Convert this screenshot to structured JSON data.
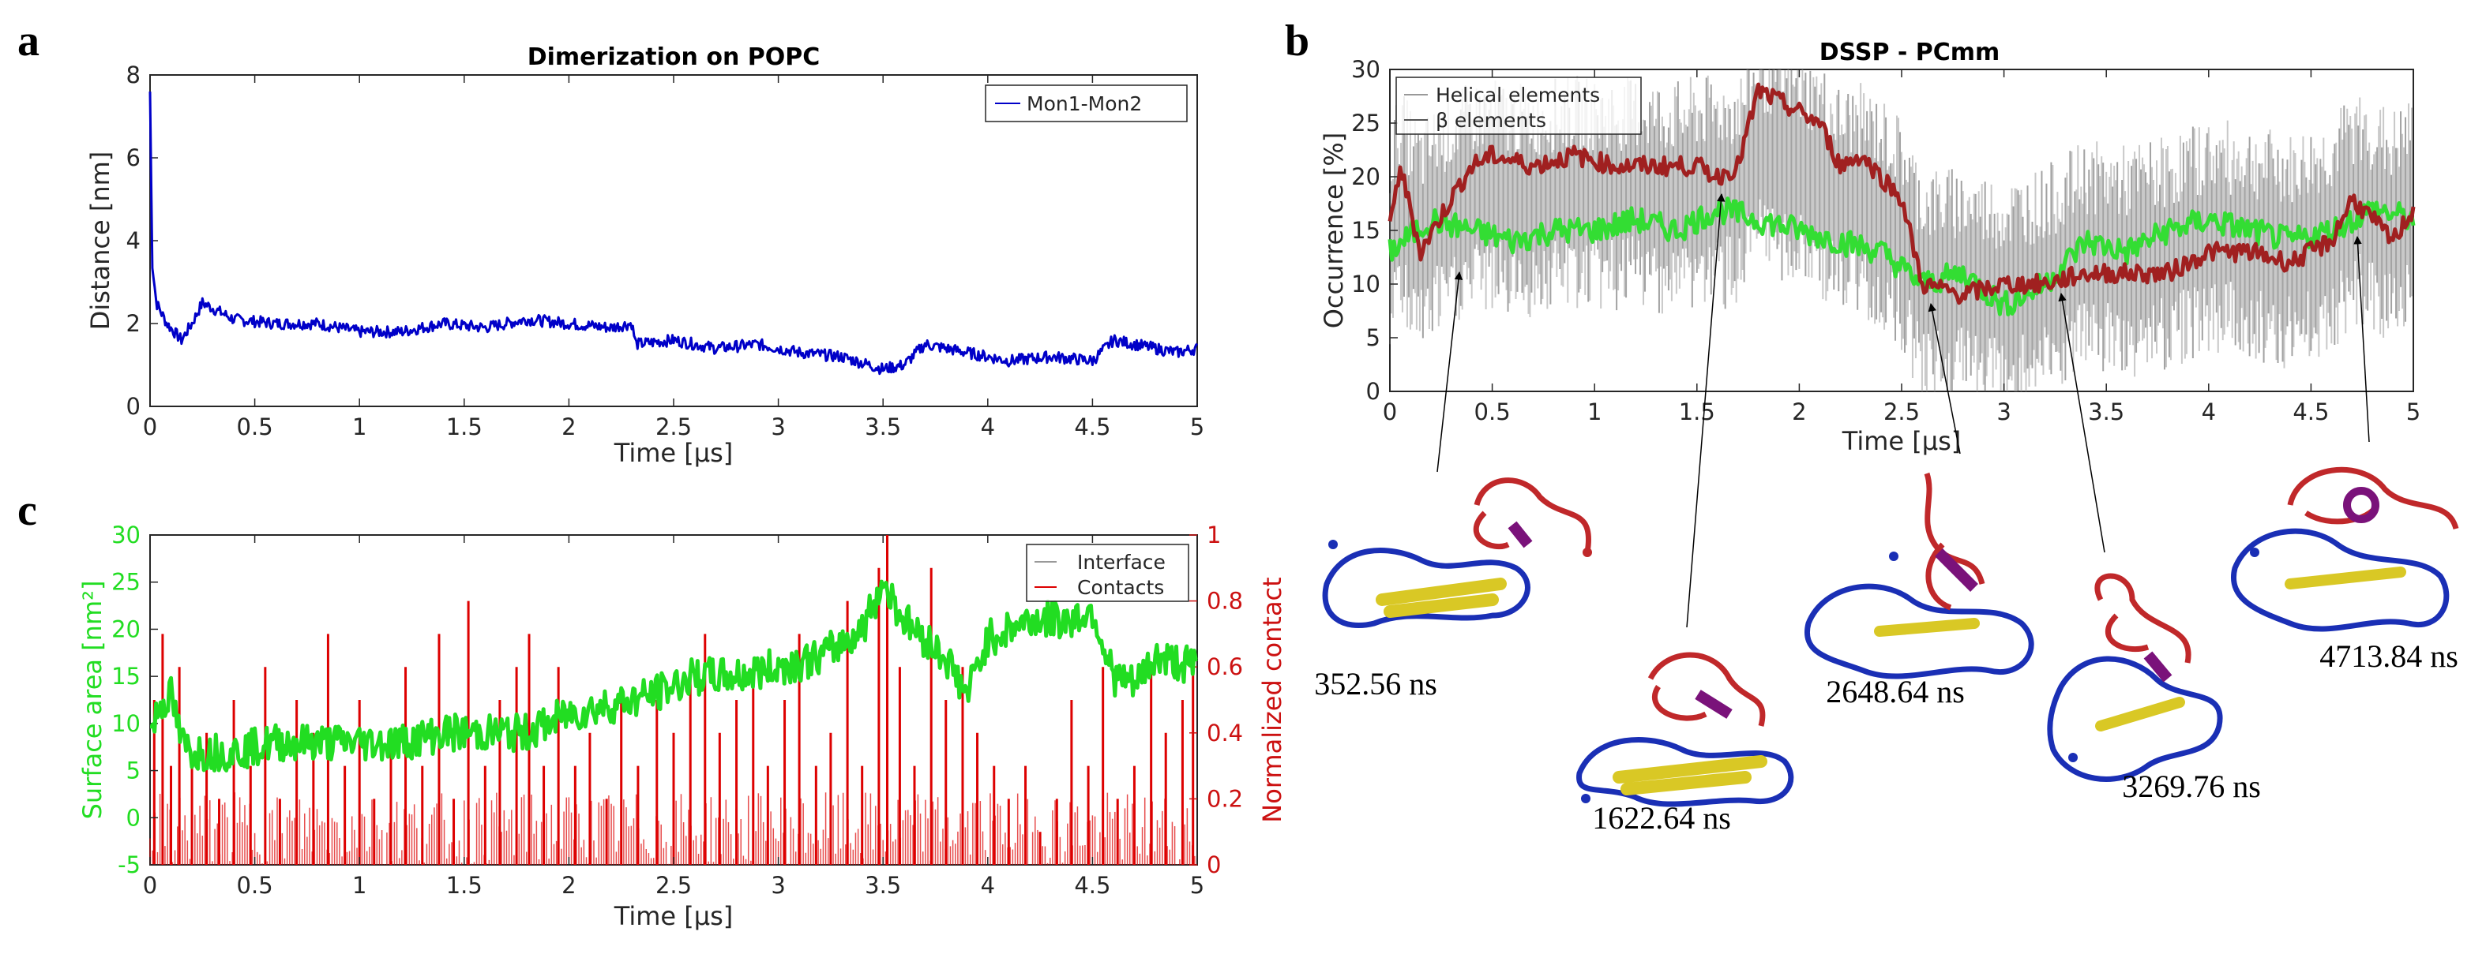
{
  "chart_data": [
    {
      "panel": "a",
      "type": "line",
      "title": "Dimerization on POPC",
      "xlabel": "Time [μs]",
      "ylabel": "Distance [nm]",
      "xlim": [
        0,
        5
      ],
      "ylim": [
        0,
        8
      ],
      "xticks": [
        "0",
        "0.5",
        "1",
        "1.5",
        "2",
        "2.5",
        "3",
        "3.5",
        "4",
        "4.5",
        "5"
      ],
      "yticks": [
        "0",
        "2",
        "4",
        "6",
        "8"
      ],
      "legend_position": "top-right",
      "series": [
        {
          "name": "Mon1-Mon2",
          "color": "#0000c8",
          "x": [
            0,
            0.01,
            0.03,
            0.08,
            0.15,
            0.2,
            0.25,
            0.4,
            0.6,
            0.8,
            1.0,
            1.2,
            1.4,
            1.6,
            1.8,
            2.0,
            2.2,
            2.3,
            2.32,
            2.5,
            2.7,
            2.9,
            3.1,
            3.3,
            3.5,
            3.6,
            3.7,
            3.9,
            4.1,
            4.3,
            4.5,
            4.6,
            4.7,
            4.9,
            5.0
          ],
          "values": [
            7.6,
            3.5,
            2.5,
            2.0,
            1.6,
            2.0,
            2.5,
            2.1,
            2.0,
            2.0,
            1.8,
            1.8,
            2.0,
            1.9,
            2.1,
            2.0,
            1.9,
            2.0,
            1.5,
            1.6,
            1.4,
            1.5,
            1.3,
            1.2,
            0.9,
            1.0,
            1.5,
            1.3,
            1.1,
            1.2,
            1.1,
            1.6,
            1.5,
            1.3,
            1.4
          ]
        }
      ]
    },
    {
      "panel": "b",
      "type": "line",
      "title": "DSSP - PCmm",
      "xlabel": "Time [μs]",
      "ylabel": "Occurrence [%]",
      "xlim": [
        0,
        5
      ],
      "ylim": [
        0,
        30
      ],
      "xticks": [
        "0",
        "0.5",
        "1",
        "1.5",
        "2",
        "2.5",
        "3",
        "3.5",
        "4",
        "4.5",
        "5"
      ],
      "yticks": [
        "0",
        "5",
        "10",
        "15",
        "20",
        "25",
        "30"
      ],
      "legend_position": "top-left",
      "series": [
        {
          "name": "Helical elements",
          "color": "#33dd33",
          "x": [
            0,
            0.2,
            0.4,
            0.6,
            0.8,
            1.0,
            1.2,
            1.4,
            1.6,
            1.8,
            2.0,
            2.2,
            2.4,
            2.6,
            2.8,
            3.0,
            3.2,
            3.4,
            3.6,
            3.8,
            4.0,
            4.2,
            4.4,
            4.6,
            4.8,
            5.0
          ],
          "values": [
            13,
            16,
            15,
            14,
            15,
            15,
            16,
            15,
            17,
            16,
            15,
            14,
            13,
            10,
            11,
            8,
            10,
            14,
            13,
            15,
            16,
            15,
            14,
            15,
            17,
            16
          ]
        },
        {
          "name": "β elements",
          "color": "#a02020",
          "x": [
            0,
            0.05,
            0.15,
            0.3,
            0.4,
            0.5,
            0.7,
            0.9,
            1.1,
            1.3,
            1.5,
            1.6,
            1.7,
            1.8,
            1.9,
            2.0,
            2.1,
            2.2,
            2.3,
            2.4,
            2.5,
            2.6,
            2.8,
            3.0,
            3.2,
            3.4,
            3.6,
            3.8,
            4.0,
            4.2,
            4.4,
            4.6,
            4.7,
            4.8,
            4.9,
            5.0
          ],
          "values": [
            15,
            21,
            13,
            18,
            21,
            22,
            21,
            22,
            21,
            21,
            21,
            20,
            21,
            28,
            27,
            26,
            25,
            21,
            22,
            20,
            18,
            10,
            9,
            10,
            10,
            11,
            11,
            11,
            13,
            13,
            12,
            14,
            18,
            16,
            14,
            17
          ]
        }
      ],
      "callouts_ns": [
        "352.56 ns",
        "1622.64 ns",
        "2648.64 ns",
        "3269.76 ns",
        "4713.84 ns"
      ]
    },
    {
      "panel": "c",
      "type": "line",
      "title": "",
      "xlabel": "Time [μs]",
      "ylabel": "Surface area [nm²]",
      "ylabel_right": "Normalized contact",
      "xlim": [
        0,
        5
      ],
      "ylim": [
        -5,
        30
      ],
      "ylim_right": [
        0,
        1
      ],
      "xticks": [
        "0",
        "0.5",
        "1",
        "1.5",
        "2",
        "2.5",
        "3",
        "3.5",
        "4",
        "4.5",
        "5"
      ],
      "yticks": [
        "-5",
        "0",
        "5",
        "10",
        "15",
        "20",
        "25",
        "30"
      ],
      "yticks_right": [
        "0",
        "0.2",
        "0.4",
        "0.6",
        "0.8",
        "1"
      ],
      "legend_position": "top-right",
      "series": [
        {
          "name": "Interface",
          "color": "#22dd22",
          "axis": "left",
          "x": [
            0,
            0.05,
            0.1,
            0.15,
            0.2,
            0.4,
            0.6,
            0.8,
            1.0,
            1.2,
            1.4,
            1.6,
            1.8,
            2.0,
            2.2,
            2.4,
            2.6,
            2.8,
            3.0,
            3.2,
            3.4,
            3.5,
            3.6,
            3.8,
            3.9,
            4.0,
            4.2,
            4.4,
            4.5,
            4.6,
            4.7,
            4.8,
            5.0
          ],
          "values": [
            9,
            12,
            13,
            8,
            7,
            7,
            8,
            8,
            8,
            8,
            9,
            9,
            9,
            11,
            12,
            13,
            15,
            15,
            16,
            17,
            20,
            25,
            21,
            17,
            13,
            19,
            21,
            21,
            22,
            15,
            14,
            17,
            16
          ]
        },
        {
          "name": "Contacts",
          "color": "#dd0000",
          "axis": "right",
          "x": [
            0.02,
            0.06,
            0.1,
            0.14,
            0.2,
            0.27,
            0.33,
            0.4,
            0.48,
            0.55,
            0.62,
            0.7,
            0.78,
            0.85,
            0.93,
            1.0,
            1.07,
            1.15,
            1.22,
            1.3,
            1.38,
            1.45,
            1.52,
            1.6,
            1.67,
            1.75,
            1.81,
            1.88,
            1.95,
            2.03,
            2.1,
            2.18,
            2.25,
            2.33,
            2.42,
            2.5,
            2.58,
            2.65,
            2.72,
            2.8,
            2.88,
            2.95,
            3.03,
            3.1,
            3.18,
            3.25,
            3.33,
            3.4,
            3.48,
            3.52,
            3.58,
            3.65,
            3.73,
            3.8,
            3.88,
            3.95,
            4.03,
            4.1,
            4.18,
            4.25,
            4.33,
            4.4,
            4.48,
            4.55,
            4.62,
            4.7,
            4.78,
            4.85,
            4.93,
            4.98
          ],
          "values": [
            0.5,
            0.7,
            0.3,
            0.6,
            0.3,
            0.4,
            0.2,
            0.5,
            0.3,
            0.6,
            0.2,
            0.5,
            0.4,
            0.7,
            0.3,
            0.5,
            0.2,
            0.4,
            0.6,
            0.3,
            0.7,
            0.2,
            0.8,
            0.3,
            0.5,
            0.6,
            0.7,
            0.3,
            0.6,
            0.3,
            0.4,
            0.2,
            0.5,
            0.3,
            0.5,
            0.4,
            0.6,
            0.7,
            0.4,
            0.5,
            0.6,
            0.3,
            0.5,
            0.7,
            0.3,
            0.4,
            0.8,
            0.3,
            0.9,
            1.0,
            0.6,
            0.3,
            0.9,
            0.5,
            0.6,
            0.4,
            0.3,
            0.2,
            0.3,
            0.1,
            0.2,
            0.5,
            0.3,
            0.6,
            0.2,
            0.3,
            0.6,
            0.4,
            0.5,
            0.6
          ]
        }
      ]
    }
  ]
}
